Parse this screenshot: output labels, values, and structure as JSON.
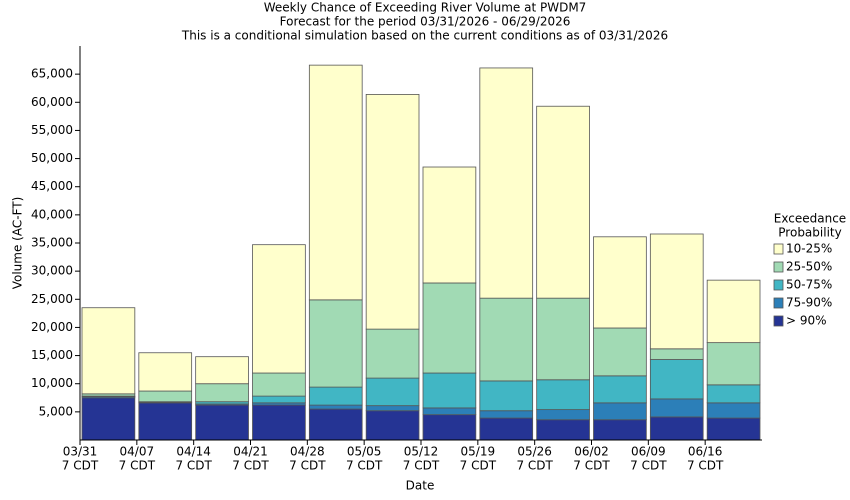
{
  "chart_data": {
    "type": "stacked-bar",
    "title": "Weekly Chance of Exceeding River Volume at PWDM7",
    "subtitle": [
      "Forecast for the period 03/31/2026 - 06/29/2026",
      "This is a conditional simulation based on the current conditions as of 03/31/2026"
    ],
    "x_label": "Date",
    "y_label": "Volume (AC-FT)",
    "legend_title": [
      "Exceedance",
      "Probability"
    ],
    "legend": "right",
    "categories": [
      [
        "03/31",
        "7 CDT"
      ],
      [
        "04/07",
        "7 CDT"
      ],
      [
        "04/14",
        "7 CDT"
      ],
      [
        "04/21",
        "7 CDT"
      ],
      [
        "04/28",
        "7 CDT"
      ],
      [
        "05/05",
        "7 CDT"
      ],
      [
        "05/12",
        "7 CDT"
      ],
      [
        "05/19",
        "7 CDT"
      ],
      [
        "05/26",
        "7 CDT"
      ],
      [
        "06/02",
        "7 CDT"
      ],
      [
        "06/09",
        "7 CDT"
      ],
      [
        "06/16",
        "7 CDT"
      ]
    ],
    "series": [
      {
        "name": "10-25%",
        "color": "#ffffcc",
        "values": [
          15300,
          6800,
          4800,
          22800,
          41700,
          41700,
          20600,
          40900,
          34100,
          16200,
          20400,
          11100
        ]
      },
      {
        "name": "25-50%",
        "color": "#a1dab4",
        "values": [
          400,
          1900,
          3200,
          4100,
          15500,
          8700,
          16000,
          14700,
          14500,
          8500,
          1900,
          7500
        ]
      },
      {
        "name": "50-75%",
        "color": "#41b6c4",
        "values": [
          100,
          100,
          400,
          1200,
          3200,
          4900,
          6200,
          5300,
          5300,
          4800,
          7000,
          3200
        ]
      },
      {
        "name": "75-90%",
        "color": "#2c7fb8",
        "values": [
          200,
          100,
          200,
          400,
          700,
          900,
          1200,
          1300,
          1800,
          3000,
          3200,
          2700
        ]
      },
      {
        "name": "> 90%",
        "color": "#253494",
        "values": [
          7500,
          6600,
          6200,
          6200,
          5500,
          5200,
          4500,
          3900,
          3600,
          3600,
          4100,
          3900
        ]
      }
    ],
    "ylim": [
      0,
      70000
    ],
    "yticks": [
      {
        "value": 5000,
        "label": "5,000"
      },
      {
        "value": 10000,
        "label": "10,000"
      },
      {
        "value": 15000,
        "label": "15,000"
      },
      {
        "value": 20000,
        "label": "20,000"
      },
      {
        "value": 25000,
        "label": "25,000"
      },
      {
        "value": 30000,
        "label": "30,000"
      },
      {
        "value": 35000,
        "label": "35,000"
      },
      {
        "value": 40000,
        "label": "40,000"
      },
      {
        "value": 45000,
        "label": "45,000"
      },
      {
        "value": 50000,
        "label": "50,000"
      },
      {
        "value": 55000,
        "label": "55,000"
      },
      {
        "value": 60000,
        "label": "60,000"
      },
      {
        "value": 65000,
        "label": "65,000"
      }
    ],
    "grid": false
  }
}
